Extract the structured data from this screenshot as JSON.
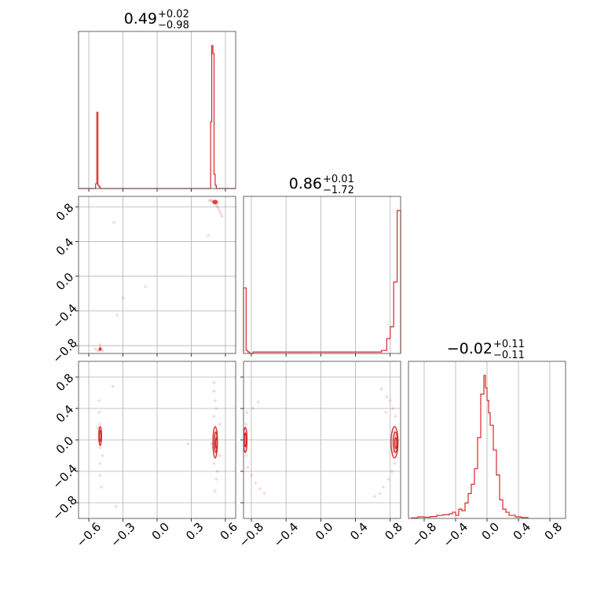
{
  "chart_data": {
    "type": "corner",
    "line_color": "#d62728",
    "grid": true,
    "panel_titles": [
      {
        "value": "0.49",
        "plus": "+0.02",
        "minus": "−0.98"
      },
      {
        "value": "0.86",
        "plus": "+0.01",
        "minus": "−1.72"
      },
      {
        "value": "−0.02",
        "plus": "+0.11",
        "minus": "−0.11"
      }
    ],
    "axis_ticks": {
      "param0": [
        "−0.6",
        "−0.3",
        "0.0",
        "0.3",
        "0.6"
      ],
      "param1": [
        "−0.8",
        "−0.4",
        "0.0",
        "0.4",
        "0.8"
      ],
      "param2": [
        "−0.8",
        "−0.4",
        "0.0",
        "0.4",
        "0.8"
      ]
    },
    "ranges": {
      "param0": [
        -0.69,
        0.69
      ],
      "param1": [
        -0.89,
        0.92
      ],
      "param2": [
        -1.0,
        1.0
      ]
    },
    "histograms": {
      "param0": {
        "edges": [
          -0.69,
          -0.54,
          -0.53,
          -0.52,
          -0.51,
          -0.5,
          -0.49,
          0.47,
          0.48,
          0.49,
          0.5,
          0.51,
          0.52,
          0.53,
          0.54,
          0.55,
          0.56,
          0.69
        ],
        "values": [
          0,
          0.03,
          0.48,
          0.02,
          0.01,
          0,
          0,
          0.42,
          0.9,
          0.85,
          0.09,
          0.02,
          0,
          0,
          0,
          0,
          0
        ]
      },
      "param1": {
        "edges": [
          -0.89,
          -0.86,
          -0.84,
          -0.82,
          -0.78,
          0.52,
          0.6,
          0.7,
          0.76,
          0.8,
          0.84,
          0.88,
          0.92
        ],
        "values": [
          0.22,
          0.01,
          0.005,
          0,
          0.005,
          0.005,
          0.005,
          0.01,
          0.05,
          0.09,
          0.24,
          0.48
        ]
      },
      "param2": {
        "edges": [
          -0.96,
          -0.88,
          -0.8,
          -0.72,
          -0.64,
          -0.56,
          -0.48,
          -0.44,
          -0.4,
          -0.36,
          -0.32,
          -0.28,
          -0.24,
          -0.2,
          -0.16,
          -0.12,
          -0.08,
          -0.04,
          -0.02,
          0.0,
          0.02,
          0.04,
          0.08,
          0.12,
          0.16,
          0.2,
          0.24,
          0.28,
          0.32,
          0.36,
          0.44,
          0.52
        ],
        "values": [
          0.002,
          0.005,
          0.004,
          0.006,
          0.01,
          0.012,
          0.015,
          0.02,
          0.01,
          0.03,
          0.025,
          0.05,
          0.08,
          0.11,
          0.16,
          0.26,
          0.4,
          0.46,
          0.42,
          0.38,
          0.34,
          0.3,
          0.22,
          0.14,
          0.06,
          0.03,
          0.02,
          0.01,
          0.01,
          0.005,
          0.003
        ]
      }
    },
    "scatter": {
      "p0_p1": [
        [
          0.48,
          0.86
        ],
        [
          0.49,
          0.87
        ],
        [
          0.5,
          0.85
        ],
        [
          0.51,
          0.84
        ],
        [
          0.52,
          0.82
        ],
        [
          0.53,
          0.8
        ],
        [
          0.54,
          0.78
        ],
        [
          0.55,
          0.75
        ],
        [
          0.56,
          0.72
        ],
        [
          0.57,
          0.69
        ],
        [
          0.46,
          0.87
        ],
        [
          0.47,
          0.88
        ],
        [
          0.45,
          0.47
        ],
        [
          -0.38,
          0.62
        ],
        [
          -0.3,
          -0.25
        ],
        [
          -0.1,
          -0.12
        ],
        [
          -0.5,
          -0.83
        ],
        [
          -0.51,
          -0.85
        ],
        [
          -0.49,
          -0.84
        ],
        [
          -0.52,
          -0.86
        ],
        [
          -0.5,
          -0.82
        ],
        [
          -0.48,
          -0.86
        ],
        [
          -0.5,
          -0.79
        ],
        [
          -0.54,
          -0.84
        ],
        [
          -0.35,
          -0.45
        ]
      ],
      "p0_p2": [
        [
          -0.5,
          0.2
        ],
        [
          -0.5,
          -0.1
        ],
        [
          -0.51,
          0.35
        ],
        [
          -0.5,
          -0.3
        ],
        [
          -0.5,
          -0.45
        ],
        [
          -0.51,
          0.5
        ],
        [
          -0.49,
          -0.6
        ],
        [
          -0.52,
          0.15
        ],
        [
          -0.48,
          -0.2
        ],
        [
          -0.39,
          0.68
        ],
        [
          -0.36,
          -0.85
        ],
        [
          0.5,
          0.3
        ],
        [
          0.5,
          -0.3
        ],
        [
          0.51,
          0.5
        ],
        [
          0.52,
          -0.5
        ],
        [
          0.53,
          0.1
        ],
        [
          0.49,
          -0.1
        ],
        [
          0.52,
          0.4
        ],
        [
          0.53,
          -0.4
        ],
        [
          0.51,
          -0.65
        ],
        [
          0.5,
          0.62
        ],
        [
          0.55,
          -0.2
        ],
        [
          0.55,
          0.2
        ],
        [
          0.27,
          -0.05
        ],
        [
          0.48,
          -0.05
        ],
        [
          0.5,
          0.73
        ]
      ],
      "p1_p2": [
        [
          -0.86,
          0.2
        ],
        [
          -0.86,
          -0.2
        ],
        [
          -0.85,
          0.35
        ],
        [
          -0.84,
          -0.35
        ],
        [
          -0.8,
          -0.45
        ],
        [
          -0.75,
          -0.55
        ],
        [
          -0.7,
          -0.62
        ],
        [
          -0.65,
          -0.68
        ],
        [
          -0.78,
          0.4
        ],
        [
          -0.72,
          0.48
        ],
        [
          0.86,
          0.3
        ],
        [
          0.85,
          -0.3
        ],
        [
          0.83,
          0.4
        ],
        [
          0.82,
          -0.4
        ],
        [
          0.8,
          0.5
        ],
        [
          0.78,
          -0.5
        ],
        [
          0.76,
          0.55
        ],
        [
          0.72,
          -0.6
        ],
        [
          0.68,
          -0.68
        ],
        [
          0.62,
          -0.72
        ],
        [
          0.7,
          0.65
        ],
        [
          0.75,
          0.35
        ],
        [
          0.84,
          0.1
        ],
        [
          0.84,
          -0.15
        ]
      ]
    },
    "contours": {
      "p0_p2": [
        {
          "cx": -0.5,
          "cy": 0.05,
          "rx": 0.012,
          "ry": 0.12
        },
        {
          "cx": -0.5,
          "cy": 0.05,
          "rx": 0.007,
          "ry": 0.07
        },
        {
          "cx": 0.51,
          "cy": -0.03,
          "rx": 0.02,
          "ry": 0.2
        },
        {
          "cx": 0.515,
          "cy": -0.03,
          "rx": 0.013,
          "ry": 0.13
        },
        {
          "cx": 0.52,
          "cy": -0.04,
          "rx": 0.007,
          "ry": 0.07
        }
      ],
      "p1_p2": [
        {
          "cx": -0.87,
          "cy": 0.0,
          "rx": 0.02,
          "ry": 0.16
        },
        {
          "cx": -0.87,
          "cy": 0.0,
          "rx": 0.01,
          "ry": 0.09
        },
        {
          "cx": 0.85,
          "cy": -0.03,
          "rx": 0.04,
          "ry": 0.2
        },
        {
          "cx": 0.86,
          "cy": -0.03,
          "rx": 0.025,
          "ry": 0.13
        },
        {
          "cx": 0.865,
          "cy": -0.04,
          "rx": 0.012,
          "ry": 0.07
        }
      ]
    },
    "density_blobs": {
      "p0_p1": [
        {
          "cx": 0.51,
          "cy": 0.855,
          "rx": 0.025,
          "ry": 0.025
        },
        {
          "cx": -0.5,
          "cy": -0.84,
          "rx": 0.012,
          "ry": 0.02
        }
      ]
    }
  }
}
